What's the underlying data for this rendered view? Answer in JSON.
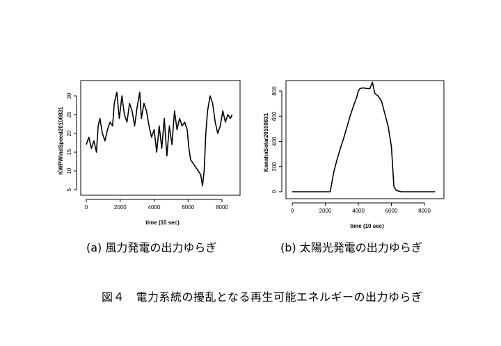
{
  "chart_data": [
    {
      "type": "line",
      "ylabel": "KWPWindSpeed20100831",
      "xlabel": "time (10 sec)",
      "xlim": [
        0,
        8640
      ],
      "ylim": [
        5,
        33
      ],
      "x_ticks": [
        "0",
        "2000",
        "4000",
        "6000",
        "8000"
      ],
      "y_ticks": [
        "5",
        "10",
        "15",
        "20",
        "25",
        "30"
      ],
      "grid": false,
      "series": [
        {
          "x": [
            0,
            150,
            300,
            450,
            600,
            700,
            800,
            950,
            1100,
            1250,
            1400,
            1550,
            1650,
            1800,
            1950,
            2100,
            2250,
            2400,
            2550,
            2700,
            2850,
            3000,
            3150,
            3250,
            3400,
            3550,
            3700,
            3850,
            4000,
            4150,
            4300,
            4450,
            4600,
            4750,
            4900,
            5050,
            5200,
            5350,
            5500,
            5650,
            5800,
            5950,
            6050,
            6150,
            6300,
            6450,
            6600,
            6750,
            6850,
            6950,
            7050,
            7150,
            7300,
            7450,
            7600,
            7750,
            7900,
            8050,
            8200,
            8350,
            8500,
            8600
          ],
          "y": [
            17,
            19,
            16,
            18,
            15,
            22,
            24,
            20,
            18,
            21,
            23,
            22,
            28,
            31,
            24,
            30,
            25,
            23,
            28,
            26,
            22,
            27,
            31,
            24,
            28,
            26,
            22,
            19,
            21,
            15,
            22,
            16,
            24,
            14,
            22,
            17,
            26,
            21,
            24,
            22,
            23,
            21,
            16,
            13,
            12,
            11,
            10,
            9,
            6,
            10,
            20,
            26,
            30,
            28,
            23,
            20,
            22,
            26,
            23,
            25,
            24,
            25
          ]
        }
      ]
    },
    {
      "type": "line",
      "ylabel": "KanahaSolar20100831",
      "xlabel": "time (10 sec)",
      "xlim": [
        0,
        8640
      ],
      "ylim": [
        0,
        900
      ],
      "x_ticks": [
        "0",
        "2000",
        "4000",
        "6000",
        "8000"
      ],
      "y_ticks": [
        "0",
        "200",
        "400",
        "600",
        "800"
      ],
      "grid": false,
      "series": [
        {
          "x": [
            0,
            1000,
            2000,
            2300,
            2500,
            2700,
            2900,
            3100,
            3300,
            3500,
            3700,
            3900,
            4000,
            4100,
            4300,
            4500,
            4700,
            4850,
            5000,
            5200,
            5400,
            5600,
            5800,
            6000,
            6150,
            6300,
            6600,
            7000,
            8000,
            8640
          ],
          "y": [
            0,
            0,
            0,
            0,
            150,
            250,
            340,
            420,
            510,
            600,
            680,
            750,
            800,
            820,
            825,
            820,
            820,
            870,
            780,
            760,
            720,
            620,
            520,
            360,
            40,
            10,
            0,
            0,
            0,
            0
          ]
        }
      ]
    }
  ],
  "captions": {
    "a": "(a) 風力発電の出力ゆらぎ",
    "b": "(b) 太陽光発電の出力ゆらぎ",
    "figure": "図４　電力系統の擾乱となる再生可能エネルギーの出力ゆらぎ"
  }
}
